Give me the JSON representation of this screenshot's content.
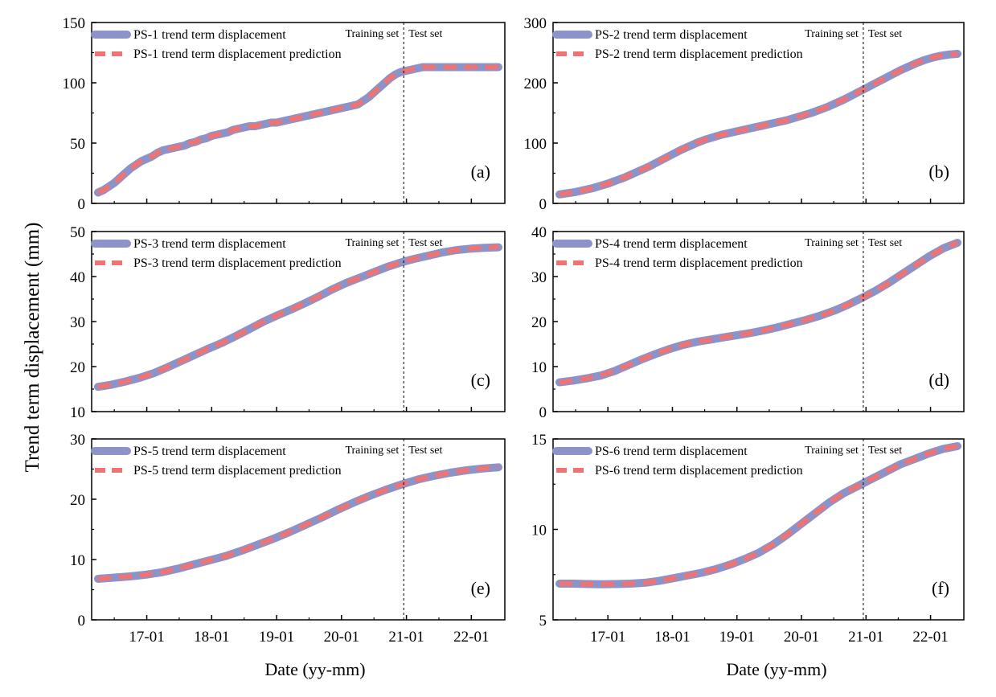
{
  "figure": {
    "ylabel": "Trend term displacement (mm)",
    "xlabel": "Date (yy-mm)",
    "training_label": "Training set",
    "test_label": "Test set",
    "colors": {
      "actual": "#8c93c9",
      "prediction": "#f07373",
      "split_line": "#000000"
    }
  },
  "chart_data": [
    {
      "type": "line",
      "panel": "(a)",
      "x_ticks": [
        "17-01",
        "18-01",
        "19-01",
        "20-01",
        "21-01",
        "22-01"
      ],
      "x_months": [
        "16-04",
        "16-05",
        "16-06",
        "16-07",
        "16-08",
        "16-09",
        "16-10",
        "16-11",
        "16-12",
        "17-01",
        "17-02",
        "17-03",
        "17-04",
        "17-05",
        "17-06",
        "17-07",
        "17-08",
        "17-09",
        "17-10",
        "17-11",
        "17-12",
        "18-01",
        "18-02",
        "18-03",
        "18-04",
        "18-05",
        "18-06",
        "18-07",
        "18-08",
        "18-09",
        "18-10",
        "18-11",
        "18-12",
        "19-01",
        "19-02",
        "19-03",
        "19-04",
        "19-05",
        "19-06",
        "19-07",
        "19-08",
        "19-09",
        "19-10",
        "19-11",
        "19-12",
        "20-01",
        "20-02",
        "20-03",
        "20-04",
        "20-05",
        "20-06",
        "20-07",
        "20-08",
        "20-09",
        "20-10",
        "20-11",
        "20-12",
        "21-01",
        "21-02",
        "21-03",
        "21-04",
        "21-05",
        "21-06",
        "21-07",
        "21-08",
        "21-09",
        "21-10",
        "21-11",
        "21-12",
        "22-01",
        "22-02",
        "22-03",
        "22-04",
        "22-05",
        "22-06"
      ],
      "split": "20-12",
      "ylim": [
        0,
        150
      ],
      "y_ticks": [
        0,
        50,
        100,
        150
      ],
      "series": [
        {
          "name": "PS-1 trend term displacement",
          "values": [
            9,
            11,
            14,
            17,
            21,
            25,
            29,
            32,
            35,
            37,
            39,
            42,
            44,
            45,
            46,
            47,
            48,
            50,
            51,
            53,
            54,
            56,
            57,
            58,
            59,
            61,
            62,
            63,
            64,
            64,
            65,
            66,
            67,
            67,
            68,
            69,
            70,
            71,
            72,
            73,
            74,
            75,
            76,
            77,
            78,
            79,
            80,
            81,
            82,
            85,
            88,
            92,
            96,
            100,
            104,
            107,
            109,
            110,
            111,
            112,
            113,
            113,
            113,
            113,
            113,
            113,
            113,
            113,
            113,
            113,
            113,
            113,
            113,
            113,
            113
          ]
        },
        {
          "name": "PS-1 trend term displacement prediction",
          "values": [
            9,
            11,
            14,
            17,
            21,
            25,
            29,
            32,
            35,
            37,
            39,
            42,
            44,
            45,
            46,
            47,
            48,
            50,
            51,
            53,
            54,
            56,
            57,
            58,
            59,
            61,
            62,
            63,
            64,
            64,
            65,
            66,
            67,
            67,
            68,
            69,
            70,
            71,
            72,
            73,
            74,
            75,
            76,
            77,
            78,
            79,
            80,
            81,
            82,
            85,
            88,
            92,
            96,
            100,
            104,
            107,
            109,
            110,
            111,
            112,
            113,
            113,
            113,
            113,
            113,
            113,
            113,
            113,
            113,
            113,
            113,
            113,
            113,
            113,
            113
          ]
        }
      ]
    },
    {
      "type": "line",
      "panel": "(b)",
      "x_ticks": [
        "17-01",
        "18-01",
        "19-01",
        "20-01",
        "21-01",
        "22-01"
      ],
      "ylim": [
        0,
        300
      ],
      "y_ticks": [
        0,
        100,
        200,
        300
      ],
      "series": [
        {
          "name": "PS-2 trend term displacement",
          "values": [
            15,
            17,
            19,
            22,
            25,
            29,
            33,
            38,
            43,
            49,
            55,
            61,
            68,
            75,
            82,
            89,
            95,
            101,
            106,
            110,
            114,
            117,
            120,
            123,
            126,
            129,
            132,
            135,
            138,
            142,
            146,
            150,
            155,
            160,
            166,
            172,
            179,
            186,
            193,
            200,
            207,
            214,
            221,
            227,
            233,
            238,
            242,
            245,
            247,
            248
          ]
        },
        {
          "name": "PS-2 trend term displacement prediction",
          "values": [
            15,
            17,
            19,
            22,
            25,
            29,
            33,
            38,
            43,
            49,
            55,
            61,
            68,
            75,
            82,
            89,
            95,
            101,
            106,
            110,
            114,
            117,
            120,
            123,
            126,
            129,
            132,
            135,
            138,
            142,
            146,
            150,
            155,
            160,
            166,
            172,
            179,
            186,
            193,
            200,
            207,
            214,
            221,
            227,
            233,
            238,
            242,
            245,
            247,
            248
          ]
        }
      ]
    },
    {
      "type": "line",
      "panel": "(c)",
      "x_ticks": [
        "17-01",
        "18-01",
        "19-01",
        "20-01",
        "21-01",
        "22-01"
      ],
      "ylim": [
        10,
        50
      ],
      "y_ticks": [
        10,
        20,
        30,
        40,
        50
      ],
      "series": [
        {
          "name": "PS-3 trend term displacement",
          "values": [
            15.5,
            16,
            16.7,
            17.5,
            18.5,
            19.8,
            21.2,
            22.6,
            24,
            25.3,
            26.8,
            28.4,
            30,
            31.4,
            32.7,
            34.1,
            35.6,
            37.2,
            38.6,
            39.8,
            41,
            42.2,
            43.2,
            44,
            44.7,
            45.4,
            45.9,
            46.2,
            46.4,
            46.5
          ]
        },
        {
          "name": "PS-3 trend term displacement prediction",
          "values": [
            15.5,
            16,
            16.7,
            17.5,
            18.5,
            19.8,
            21.2,
            22.6,
            24,
            25.3,
            26.8,
            28.4,
            30,
            31.4,
            32.7,
            34.1,
            35.6,
            37.2,
            38.6,
            39.8,
            41,
            42.2,
            43.2,
            44,
            44.7,
            45.4,
            45.9,
            46.2,
            46.4,
            46.6
          ]
        }
      ]
    },
    {
      "type": "line",
      "panel": "(d)",
      "x_ticks": [
        "17-01",
        "18-01",
        "19-01",
        "20-01",
        "21-01",
        "22-01"
      ],
      "ylim": [
        0,
        40
      ],
      "y_ticks": [
        0,
        10,
        20,
        30,
        40
      ],
      "series": [
        {
          "name": "PS-4 trend term displacement",
          "values": [
            6.5,
            6.9,
            7.4,
            8,
            9,
            10.3,
            11.6,
            12.8,
            13.9,
            14.8,
            15.5,
            16,
            16.5,
            17,
            17.5,
            18.1,
            18.8,
            19.6,
            20.4,
            21.3,
            22.4,
            23.7,
            25.2,
            26.8,
            28.6,
            30.6,
            32.6,
            34.6,
            36.3,
            37.5
          ]
        },
        {
          "name": "PS-4 trend term displacement prediction",
          "values": [
            6.5,
            6.9,
            7.4,
            8,
            9,
            10.3,
            11.6,
            12.8,
            13.9,
            14.8,
            15.5,
            16,
            16.5,
            17,
            17.5,
            18.1,
            18.8,
            19.6,
            20.4,
            21.3,
            22.4,
            23.7,
            25.2,
            26.8,
            28.6,
            30.6,
            32.6,
            34.6,
            36.3,
            37.5
          ]
        }
      ]
    },
    {
      "type": "line",
      "panel": "(e)",
      "x_ticks": [
        "17-01",
        "18-01",
        "19-01",
        "20-01",
        "21-01",
        "22-01"
      ],
      "ylim": [
        0,
        30
      ],
      "y_ticks": [
        0,
        10,
        20,
        30
      ],
      "series": [
        {
          "name": "PS-5 trend term displacement",
          "values": [
            6.8,
            7,
            7.2,
            7.5,
            7.9,
            8.5,
            9.2,
            9.9,
            10.6,
            11.5,
            12.5,
            13.5,
            14.6,
            15.8,
            17,
            18.3,
            19.5,
            20.6,
            21.6,
            22.5,
            23.3,
            23.9,
            24.4,
            24.8,
            25.1,
            25.3
          ]
        },
        {
          "name": "PS-5 trend term displacement prediction",
          "values": [
            6.8,
            7,
            7.2,
            7.5,
            7.9,
            8.5,
            9.2,
            9.9,
            10.6,
            11.5,
            12.5,
            13.5,
            14.6,
            15.8,
            17,
            18.3,
            19.5,
            20.6,
            21.6,
            22.5,
            23.3,
            23.9,
            24.4,
            24.8,
            25.1,
            25.4
          ]
        }
      ]
    },
    {
      "type": "line",
      "panel": "(f)",
      "x_ticks": [
        "17-01",
        "18-01",
        "19-01",
        "20-01",
        "21-01",
        "22-01"
      ],
      "ylim": [
        5,
        15
      ],
      "y_ticks": [
        5,
        10,
        15
      ],
      "series": [
        {
          "name": "PS-6 trend term displacement",
          "values": [
            7,
            7,
            6.98,
            6.97,
            6.98,
            7,
            7.05,
            7.15,
            7.3,
            7.45,
            7.6,
            7.8,
            8.05,
            8.35,
            8.7,
            9.15,
            9.7,
            10.3,
            10.9,
            11.5,
            12,
            12.4,
            12.8,
            13.2,
            13.6,
            13.9,
            14.2,
            14.45,
            14.6
          ]
        },
        {
          "name": "PS-6 trend term displacement prediction",
          "values": [
            7,
            7,
            6.98,
            6.97,
            6.98,
            7,
            7.05,
            7.15,
            7.3,
            7.45,
            7.6,
            7.8,
            8.05,
            8.35,
            8.7,
            9.15,
            9.7,
            10.3,
            10.9,
            11.5,
            12,
            12.4,
            12.8,
            13.2,
            13.6,
            13.9,
            14.2,
            14.45,
            14.6
          ]
        }
      ]
    }
  ]
}
